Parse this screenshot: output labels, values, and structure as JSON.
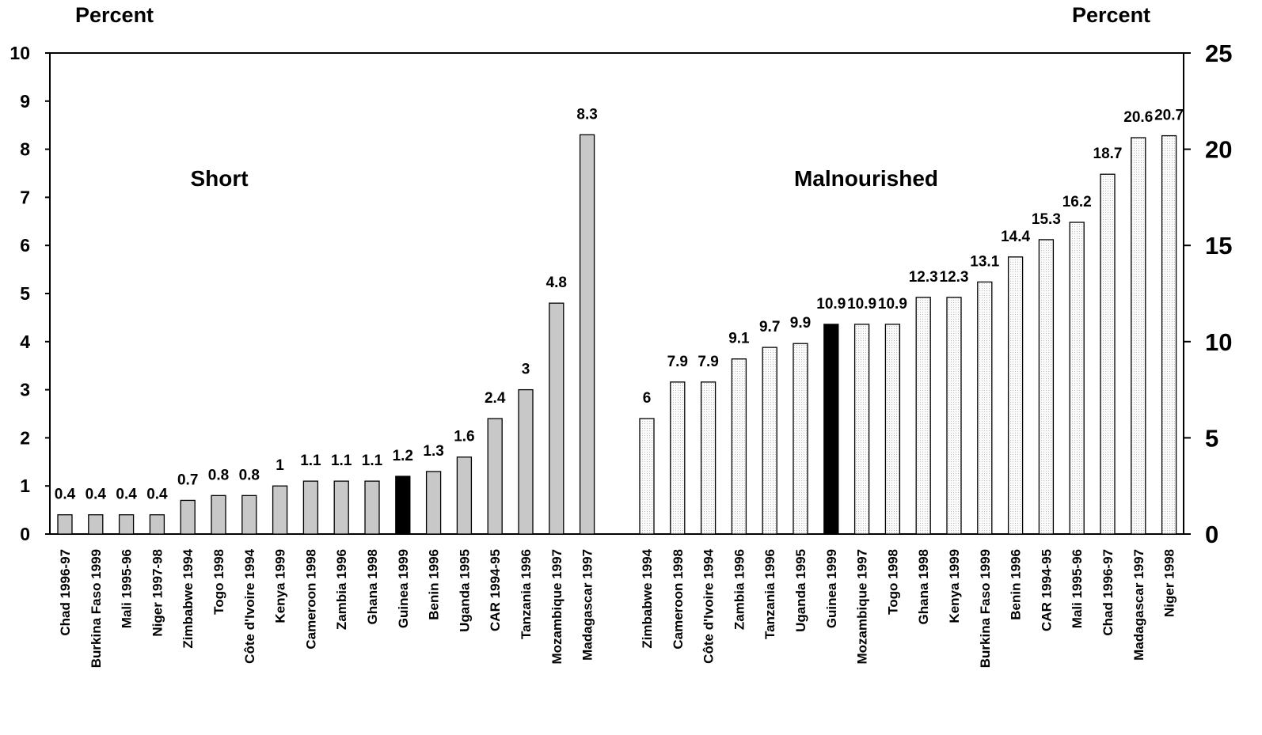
{
  "chart_data": [
    {
      "type": "bar",
      "title": "Short",
      "ylabel": "Percent",
      "axis": "left",
      "ylim": [
        0,
        10
      ],
      "yticks": [
        "0",
        "1",
        "2",
        "3",
        "4",
        "5",
        "6",
        "7",
        "8",
        "9",
        "10"
      ],
      "categories": [
        "Chad 1996-97",
        "Burkina Faso 1999",
        "Mali 1995-96",
        "Niger 1997-98",
        "Zimbabwe 1994",
        "Togo 1998",
        "Côte d'Ivoire 1994",
        "Kenya 1999",
        "Cameroon 1998",
        "Zambia 1996",
        "Ghana 1998",
        "Guinea 1999",
        "Benin 1996",
        "Uganda 1995",
        "CAR 1994-95",
        "Tanzania 1996",
        "Mozambique 1997",
        "Madagascar 1997"
      ],
      "values": [
        0.4,
        0.4,
        0.4,
        0.4,
        0.7,
        0.8,
        0.8,
        1,
        1.1,
        1.1,
        1.1,
        1.2,
        1.3,
        1.6,
        2.4,
        3,
        4.8,
        8.3
      ],
      "value_labels": [
        "0.4",
        "0.4",
        "0.4",
        "0.4",
        "0.7",
        "0.8",
        "0.8",
        "1",
        "1.1",
        "1.1",
        "1.1",
        "1.2",
        "1.3",
        "1.6",
        "2.4",
        "3",
        "4.8",
        "8.3"
      ],
      "highlight": "Guinea 1999",
      "bar_color": "#c8c8c8",
      "highlight_color": "#000000"
    },
    {
      "type": "bar",
      "title": "Malnourished",
      "ylabel": "Percent",
      "axis": "right",
      "ylim": [
        0,
        25
      ],
      "yticks": [
        "0",
        "5",
        "10",
        "15",
        "20",
        "25"
      ],
      "categories": [
        "Zimbabwe 1994",
        "Cameroon 1998",
        "Côte d'Ivoire 1994",
        "Zambia 1996",
        "Tanzania 1996",
        "Uganda 1995",
        "Guinea 1999",
        "Mozambique 1997",
        "Togo 1998",
        "Ghana 1998",
        "Kenya 1999",
        "Burkina Faso 1999",
        "Benin 1996",
        "CAR 1994-95",
        "Mali 1995-96",
        "Chad 1996-97",
        "Madagascar 1997",
        "Niger 1998"
      ],
      "values": [
        6,
        7.9,
        7.9,
        9.1,
        9.7,
        9.9,
        10.9,
        10.9,
        10.9,
        12.3,
        12.3,
        13.1,
        14.4,
        15.3,
        16.2,
        18.7,
        20.6,
        20.7
      ],
      "value_labels": [
        "6",
        "7.9",
        "7.9",
        "9.1",
        "9.7",
        "9.9",
        "10.9",
        "10.9",
        "10.9",
        "12.3",
        "12.3",
        "13.1",
        "14.4",
        "15.3",
        "16.2",
        "18.7",
        "20.6",
        "20.7"
      ],
      "highlight": "Guinea 1999",
      "bar_color": "#f4f4f4",
      "highlight_color": "#000000"
    }
  ]
}
